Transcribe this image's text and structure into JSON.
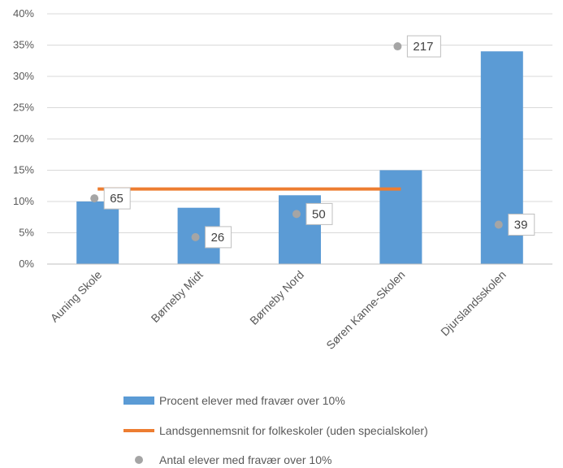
{
  "chart_data": {
    "type": "bar",
    "categories": [
      "Auning Skole",
      "Børneby Midt",
      "Børneby Nord",
      "Søren Kanne-Skolen",
      "Djurslandsskolen"
    ],
    "series": [
      {
        "name": "Procent elever med fravær over 10%",
        "kind": "bar",
        "values": [
          10,
          9,
          11,
          15,
          34
        ]
      },
      {
        "name": "Landsgennemsnit for folkeskoler (uden specialskoler)",
        "kind": "line",
        "values": [
          12,
          12,
          12,
          12,
          null
        ]
      },
      {
        "name": "Antal elever med fravær over 10%",
        "kind": "scatter",
        "values": [
          10.5,
          4.3,
          8.0,
          34.8,
          6.3
        ],
        "labels": [
          "65",
          "26",
          "50",
          "217",
          "39"
        ]
      }
    ],
    "ylim": [
      0,
      40
    ],
    "yticks": [
      "0%",
      "5%",
      "10%",
      "15%",
      "20%",
      "25%",
      "30%",
      "35%",
      "40%"
    ],
    "grid": true,
    "legend_position": "bottom",
    "colors": {
      "bar": "#5B9BD5",
      "line": "#ED7D31",
      "scatter": "#A5A5A5",
      "grid": "#D9D9D9",
      "text": "#595959"
    }
  }
}
